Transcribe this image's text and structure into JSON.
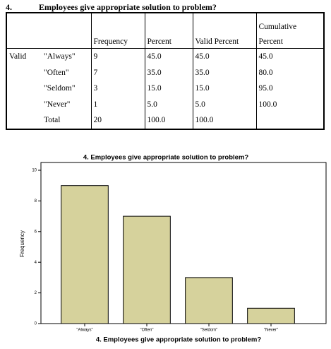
{
  "heading": {
    "number": "4.",
    "title": "Employees give appropriate solution to problem?"
  },
  "table": {
    "header": {
      "frequency": "Frequency",
      "percent": "Percent",
      "valid_percent": "Valid Percent",
      "cumulative_percent": [
        "Cumulative",
        "Percent"
      ]
    },
    "rows": [
      {
        "group": "Valid",
        "label": "\"Always\"",
        "cells": [
          "9",
          "45.0",
          "45.0",
          "45.0"
        ]
      },
      {
        "label": "\"Often\"",
        "cells": [
          "7",
          "35.0",
          "35.0",
          "80.0"
        ]
      },
      {
        "label": "\"Seldom\"",
        "cells": [
          "3",
          "15.0",
          "15.0",
          "95.0"
        ]
      },
      {
        "label": "\"Never\"",
        "cells": [
          "1",
          "5.0",
          "5.0",
          "100.0"
        ]
      },
      {
        "label": "Total",
        "cells": [
          "20",
          "100.0",
          "100.0"
        ]
      }
    ]
  },
  "chart_data": {
    "type": "bar",
    "title": "4. Employees give appropriate solution to problem?",
    "categories": [
      "\"Always\"",
      "\"Often\"",
      "\"Seldom\"",
      "\"Never\""
    ],
    "values": [
      9,
      7,
      3,
      1
    ],
    "color": "#d6d29c",
    "xlabel": "4. Employees give appropriate solution to problem?",
    "ylabel": "Frequency",
    "ylim": [
      0,
      10
    ],
    "yticks": [
      0,
      2,
      4,
      6,
      8,
      10
    ]
  }
}
